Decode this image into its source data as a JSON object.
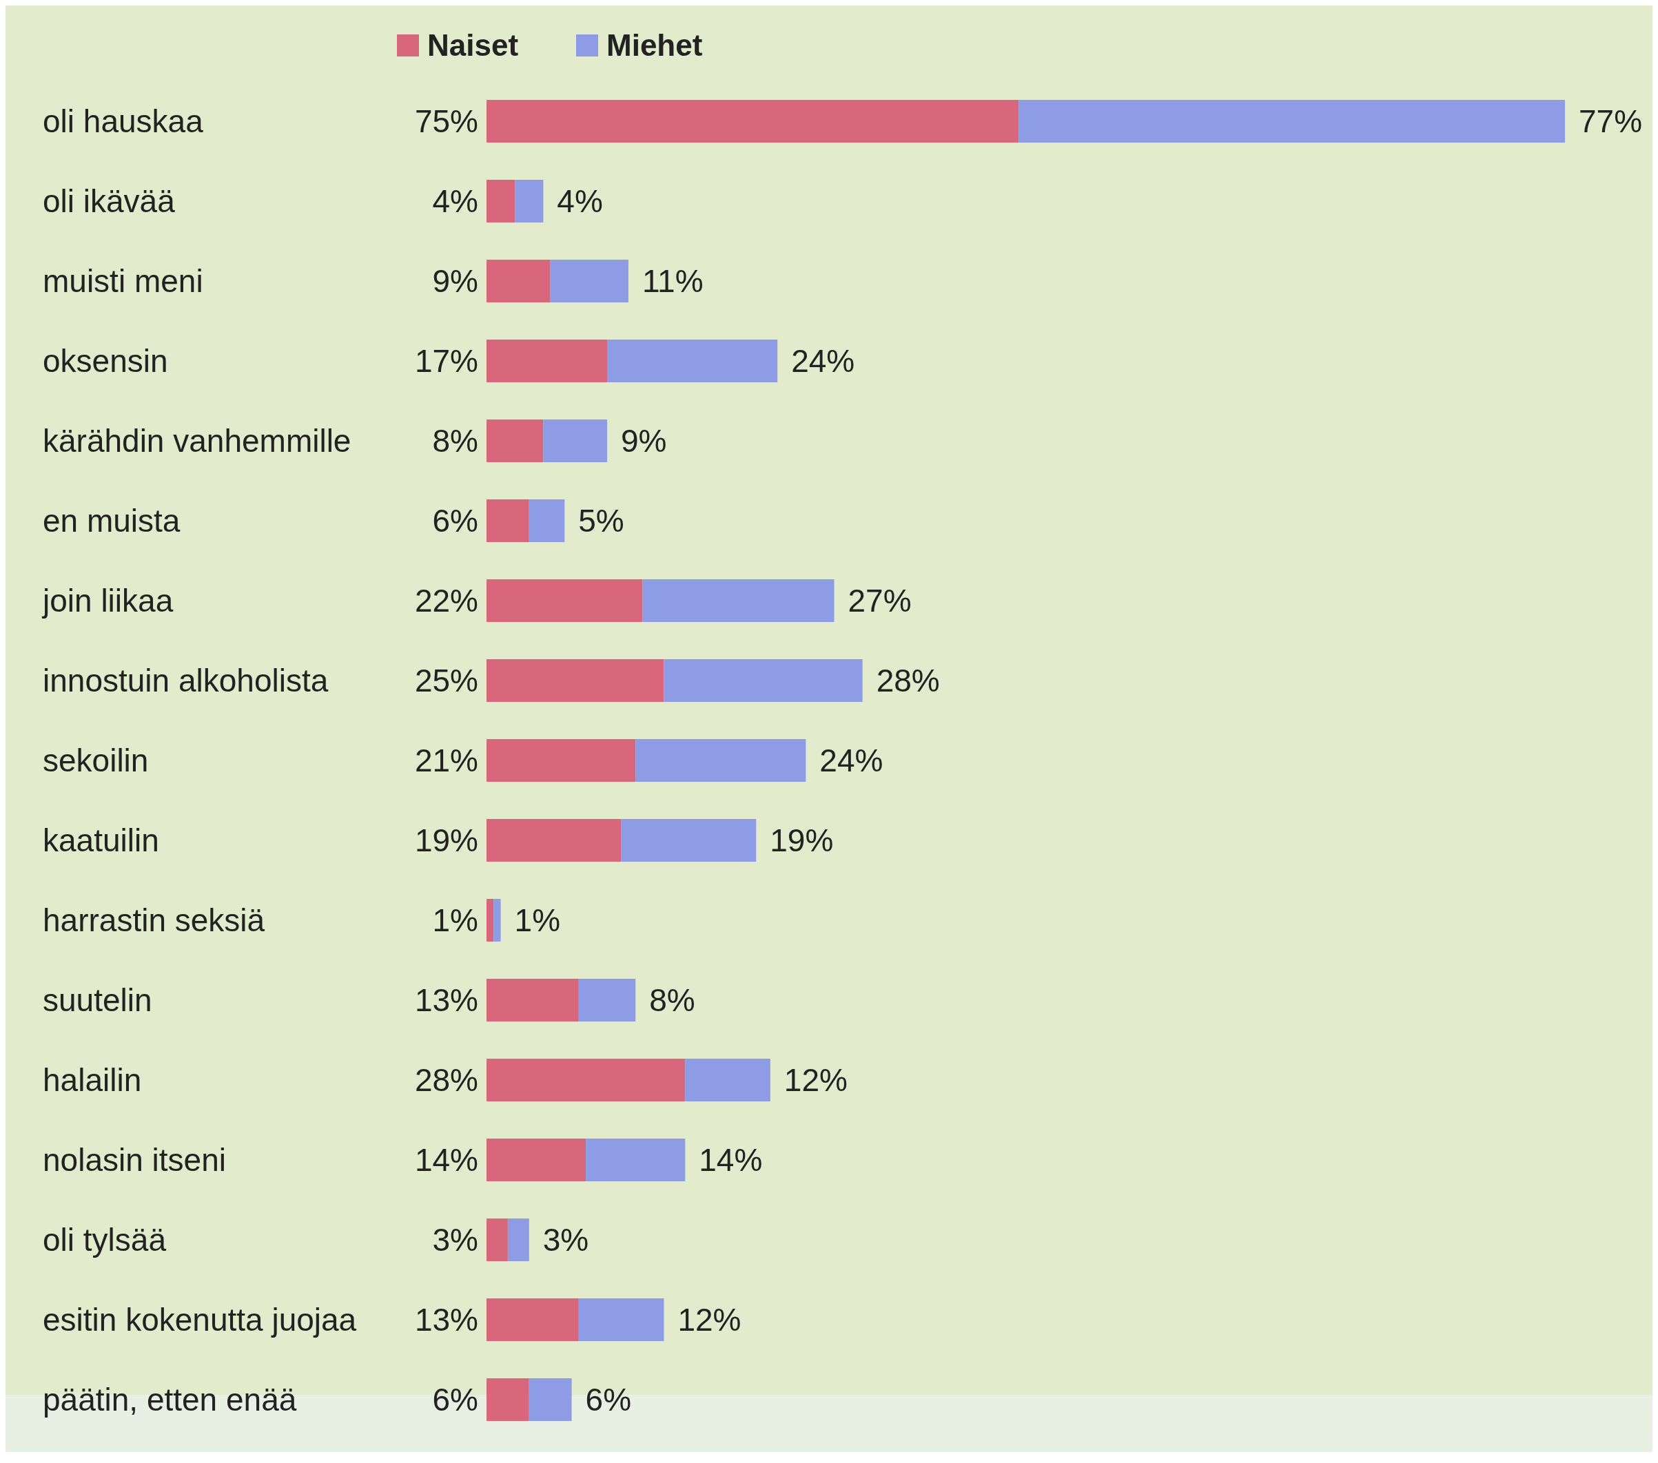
{
  "chart_data": {
    "type": "bar",
    "orientation": "horizontal",
    "stacked": true,
    "legend": "top",
    "tick_labels": "y",
    "categories": [
      "oli hauskaa",
      "oli ikävää",
      "muisti meni",
      "oksensin",
      "kärähdin vanhemmille",
      "en muista",
      "join liikaa",
      "innostuin alkoholista",
      "sekoilin",
      "kaatuilin",
      "harrastin seksiä",
      "suutelin",
      "halailin",
      "nolasin itseni",
      "oli tylsää",
      "esitin kokenutta juojaa",
      "päätin, etten enää"
    ],
    "series": [
      {
        "name": "Naiset",
        "color": "#d9677c",
        "values": [
          75,
          4,
          9,
          17,
          8,
          6,
          22,
          25,
          21,
          19,
          1,
          13,
          28,
          14,
          3,
          13,
          6
        ],
        "value_labels": [
          "75%",
          "4%",
          "9%",
          "17%",
          "8%",
          "6%",
          "22%",
          "25%",
          "21%",
          "19%",
          "1%",
          "13%",
          "28%",
          "14%",
          "3%",
          "13%",
          "6%"
        ]
      },
      {
        "name": "Miehet",
        "color": "#8e9ce6",
        "values": [
          77,
          4,
          11,
          24,
          9,
          5,
          27,
          28,
          24,
          19,
          1,
          8,
          12,
          14,
          3,
          12,
          6
        ],
        "value_labels": [
          "77%",
          "4%",
          "11%",
          "24%",
          "9%",
          "5%",
          "27%",
          "28%",
          "24%",
          "19%",
          "1%",
          "8%",
          "12%",
          "14%",
          "3%",
          "12%",
          "6%"
        ]
      }
    ]
  }
}
